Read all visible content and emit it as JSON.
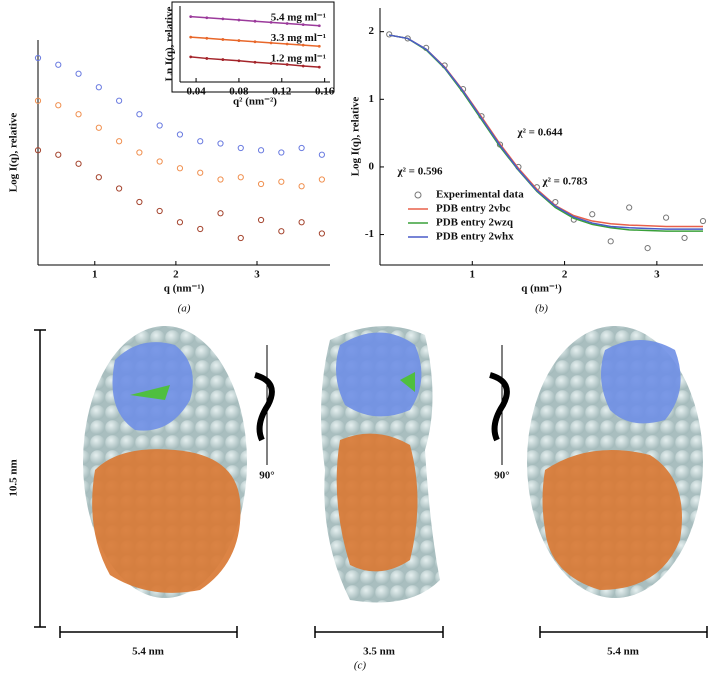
{
  "chart_data": [
    {
      "type": "scatter",
      "panel_label": "(a)",
      "x_label": "q (nm⁻¹)",
      "y_label": "Log I(q), relative",
      "x": [
        0.3,
        0.55,
        0.8,
        1.05,
        1.3,
        1.55,
        1.8,
        2.05,
        2.3,
        2.55,
        2.8,
        3.05,
        3.3,
        3.55,
        3.8
      ],
      "xlim": [
        0.3,
        3.9
      ],
      "xticks": [
        1,
        2,
        3
      ],
      "ylim": [
        0,
        10
      ],
      "series": [
        {
          "color": "#6a7be0",
          "values": [
            9.2,
            8.9,
            8.5,
            7.9,
            7.3,
            6.7,
            6.2,
            5.8,
            5.5,
            5.4,
            5.2,
            5.1,
            5.0,
            5.2,
            4.9
          ]
        },
        {
          "color": "#f09050",
          "values": [
            7.3,
            7.1,
            6.7,
            6.1,
            5.5,
            5.0,
            4.6,
            4.3,
            4.1,
            3.8,
            3.9,
            3.6,
            3.7,
            3.5,
            3.8
          ]
        },
        {
          "color": "#a4442e",
          "values": [
            5.1,
            4.9,
            4.5,
            3.9,
            3.4,
            2.8,
            2.4,
            1.9,
            1.6,
            2.3,
            1.2,
            2.0,
            1.5,
            1.9,
            1.4
          ]
        }
      ]
    },
    {
      "type": "line",
      "x_label": "q² (nm⁻²)",
      "y_label": "Ln I(q), relative",
      "x": [
        0.035,
        0.05,
        0.065,
        0.08,
        0.095,
        0.11,
        0.125,
        0.14,
        0.155
      ],
      "xlim": [
        0.025,
        0.165
      ],
      "xticks": [
        0.04,
        0.08,
        0.12,
        0.16
      ],
      "ylim": [
        0,
        10
      ],
      "series": [
        {
          "name": "5.4 mg ml⁻¹",
          "color": "#9b3a9b",
          "values": [
            8.6,
            8.45,
            8.3,
            8.15,
            8.0,
            7.85,
            7.7,
            7.55,
            7.4
          ]
        },
        {
          "name": "3.3 mg ml⁻¹",
          "color": "#e8672a",
          "values": [
            5.9,
            5.75,
            5.6,
            5.45,
            5.3,
            5.15,
            5.0,
            4.85,
            4.7
          ]
        },
        {
          "name": "1.2 mg ml⁻¹",
          "color": "#a4242a",
          "values": [
            3.3,
            3.1,
            2.95,
            2.8,
            2.6,
            2.45,
            2.3,
            2.1,
            1.95
          ]
        }
      ]
    },
    {
      "type": "line",
      "panel_label": "(b)",
      "x_label": "q (nm⁻¹)",
      "y_label": "Log I(q), relative",
      "x": [
        0.1,
        0.3,
        0.5,
        0.7,
        0.9,
        1.1,
        1.3,
        1.5,
        1.7,
        1.9,
        2.1,
        2.3,
        2.5,
        2.7,
        2.9,
        3.1,
        3.3,
        3.5
      ],
      "xlim": [
        0,
        3.5
      ],
      "xticks": [
        1,
        2,
        3
      ],
      "ylim": [
        -1.45,
        2.35
      ],
      "yticks": [
        -1,
        0,
        1,
        2
      ],
      "legend": "lower left",
      "series": [
        {
          "name": "Experimental data",
          "color": "#777777",
          "marker": "circle",
          "values": [
            1.96,
            1.9,
            1.76,
            1.5,
            1.15,
            0.75,
            0.33,
            0.0,
            -0.3,
            -0.52,
            -0.78,
            -0.7,
            -1.1,
            -0.6,
            -1.2,
            -0.75,
            -1.05,
            -0.8
          ]
        },
        {
          "name": "PDB entry 2vbc",
          "color": "#e8604a",
          "values": [
            1.95,
            1.9,
            1.74,
            1.48,
            1.13,
            0.74,
            0.34,
            -0.02,
            -0.33,
            -0.57,
            -0.72,
            -0.8,
            -0.84,
            -0.86,
            -0.87,
            -0.88,
            -0.88,
            -0.88
          ]
        },
        {
          "name": "PDB entry 2wzq",
          "color": "#3aa03a",
          "values": [
            1.95,
            1.9,
            1.73,
            1.46,
            1.1,
            0.7,
            0.3,
            -0.05,
            -0.36,
            -0.6,
            -0.76,
            -0.85,
            -0.9,
            -0.93,
            -0.94,
            -0.95,
            -0.95,
            -0.95
          ]
        },
        {
          "name": "PDB entry 2whx",
          "color": "#4a5cc8",
          "values": [
            1.95,
            1.9,
            1.74,
            1.47,
            1.12,
            0.72,
            0.32,
            -0.04,
            -0.35,
            -0.58,
            -0.74,
            -0.83,
            -0.88,
            -0.9,
            -0.91,
            -0.92,
            -0.92,
            -0.92
          ]
        }
      ],
      "annotations": [
        {
          "text": "χ² = 0.644",
          "color": "#d03030"
        },
        {
          "text": "χ² = 0.596",
          "color": "#3048c0"
        },
        {
          "text": "χ² = 0.783",
          "color": "#50a020"
        }
      ]
    }
  ],
  "panel_c": {
    "label": "(c)",
    "height_scale": "10.5 nm",
    "width_scales": [
      "5.4 nm",
      "3.5 nm",
      "5.4 nm"
    ],
    "rotations": [
      "90°",
      "90°"
    ]
  }
}
